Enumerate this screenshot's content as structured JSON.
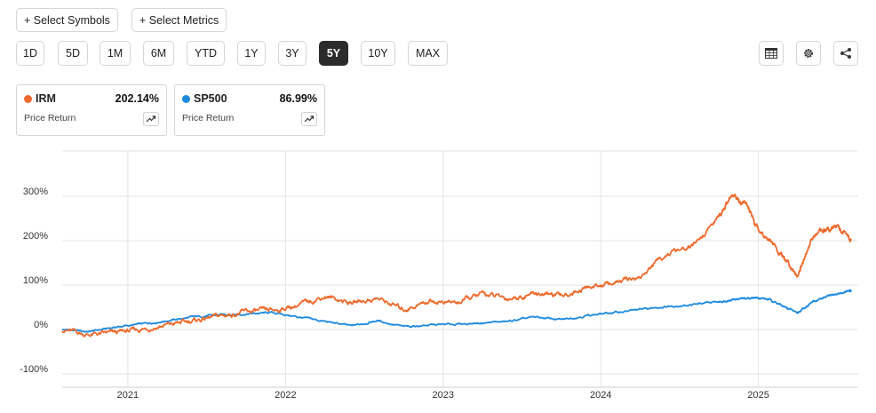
{
  "toolbar": {
    "select_symbols": "+ Select Symbols",
    "select_metrics": "+ Select Metrics",
    "ranges": [
      "1D",
      "5D",
      "1M",
      "6M",
      "YTD",
      "1Y",
      "3Y",
      "5Y",
      "10Y",
      "MAX"
    ],
    "active_range": "5Y",
    "icons": [
      "table-icon",
      "gear-icon",
      "share-icon"
    ]
  },
  "legend": [
    {
      "symbol": "IRM",
      "value": "202.14%",
      "label": "Price Return",
      "color": "#ee6a2c"
    },
    {
      "symbol": "SP500",
      "value": "86.99%",
      "label": "Price Return",
      "color": "#1f8be0"
    }
  ],
  "chart_data": {
    "type": "line",
    "title": "",
    "xlabel": "",
    "ylabel": "",
    "y_ticks": [
      "300%",
      "200%",
      "100%",
      "0%",
      "-100%"
    ],
    "y_tick_values": [
      300,
      200,
      100,
      0,
      -100
    ],
    "x_ticks": [
      "2021",
      "2022",
      "2023",
      "2024",
      "2025"
    ],
    "ylim": [
      -100,
      400
    ],
    "grid": true,
    "x": [
      "2020-08",
      "2020-10",
      "2020-12",
      "2021-02",
      "2021-04",
      "2021-06",
      "2021-08",
      "2021-10",
      "2021-12",
      "2022-02",
      "2022-04",
      "2022-06",
      "2022-08",
      "2022-10",
      "2022-12",
      "2023-02",
      "2023-04",
      "2023-06",
      "2023-08",
      "2023-10",
      "2023-12",
      "2024-02",
      "2024-04",
      "2024-06",
      "2024-08",
      "2024-10",
      "2024-11",
      "2024-12",
      "2025-01",
      "2025-02",
      "2025-03",
      "2025-04",
      "2025-05",
      "2025-06",
      "2025-07",
      "2025-08"
    ],
    "series": [
      {
        "name": "IRM",
        "color": "#ee6a2c",
        "values": [
          0,
          -12,
          -8,
          0,
          10,
          20,
          30,
          40,
          42,
          55,
          75,
          60,
          70,
          45,
          65,
          60,
          80,
          70,
          82,
          75,
          95,
          105,
          118,
          170,
          185,
          255,
          300,
          285,
          225,
          200,
          155,
          125,
          200,
          225,
          235,
          202
        ]
      },
      {
        "name": "SP500",
        "color": "#1f8be0",
        "values": [
          0,
          -5,
          5,
          12,
          20,
          28,
          33,
          35,
          38,
          28,
          18,
          8,
          20,
          6,
          10,
          12,
          15,
          18,
          28,
          22,
          32,
          38,
          45,
          52,
          56,
          62,
          68,
          70,
          72,
          66,
          50,
          38,
          60,
          72,
          80,
          87
        ]
      }
    ]
  }
}
